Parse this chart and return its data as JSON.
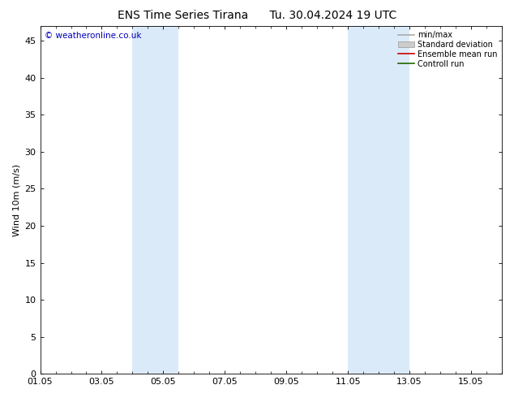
{
  "title": "ENS Time Series Tirana      Tu. 30.04.2024 19 UTC",
  "ylabel": "Wind 10m (m/s)",
  "bg_color": "#ffffff",
  "plot_bg_color": "#ffffff",
  "shaded_bands": [
    {
      "xstart": 4.0,
      "xend": 5.5,
      "color": "#dbeaf8"
    },
    {
      "xstart": 11.0,
      "xend": 13.0,
      "color": "#dbeaf8"
    }
  ],
  "x_ticks": [
    1,
    3,
    5,
    7,
    9,
    11,
    13,
    15
  ],
  "x_tick_labels": [
    "01.05",
    "03.05",
    "05.05",
    "07.05",
    "09.05",
    "11.05",
    "13.05",
    "15.05"
  ],
  "xlim": [
    1,
    16
  ],
  "ylim": [
    0,
    47
  ],
  "y_ticks": [
    0,
    5,
    10,
    15,
    20,
    25,
    30,
    35,
    40,
    45
  ],
  "watermark": "© weatheronline.co.uk",
  "watermark_color": "#0000bb",
  "legend_items": [
    {
      "label": "min/max",
      "color": "#aaaaaa",
      "style": "line"
    },
    {
      "label": "Standard deviation",
      "color": "#cccccc",
      "style": "bar"
    },
    {
      "label": "Ensemble mean run",
      "color": "#cc0000",
      "style": "line"
    },
    {
      "label": "Controll run",
      "color": "#226600",
      "style": "line"
    }
  ],
  "tick_fontsize": 8,
  "label_fontsize": 8,
  "title_fontsize": 10
}
